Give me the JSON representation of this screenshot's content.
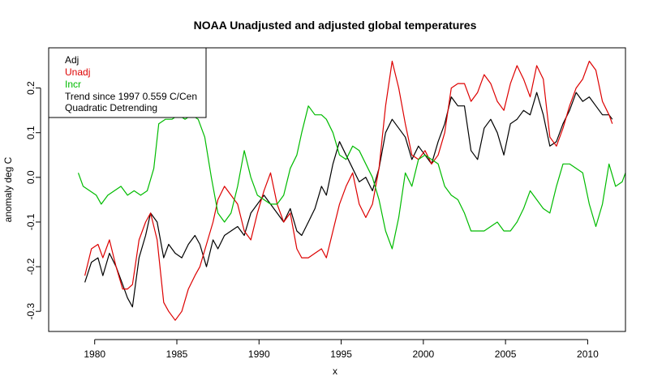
{
  "chart_data": {
    "type": "line",
    "title": "NOAA Unadjusted and adjusted global temperatures",
    "xlabel": "x",
    "ylabel": "anomaly deg C",
    "xlim": [
      1977.2,
      2012.3
    ],
    "ylim": [
      -0.345,
      0.29
    ],
    "x_ticks": [
      "1980",
      "1985",
      "1990",
      "1995",
      "2000",
      "2005",
      "2010"
    ],
    "y_ticks": [
      "-0.3",
      "-0.2",
      "-0.1",
      "0.0",
      "0.1",
      "0.2"
    ],
    "legend": {
      "position": "top-left",
      "entries": [
        {
          "text": "Adj",
          "color": "#000000"
        },
        {
          "text": "Unadj",
          "color": "#dd0000"
        },
        {
          "text": "Incr",
          "color": "#00bb00"
        },
        {
          "text": "Trend since 1997 0.559 C/Cen",
          "color": "#000000"
        },
        {
          "text": "Quadratic Detrending",
          "color": "#000000"
        }
      ]
    },
    "series": [
      {
        "name": "Adj",
        "color": "#000000",
        "points": [
          [
            1979.4,
            -0.235
          ],
          [
            1979.8,
            -0.19
          ],
          [
            1980.2,
            -0.18
          ],
          [
            1980.5,
            -0.22
          ],
          [
            1980.9,
            -0.17
          ],
          [
            1981.3,
            -0.2
          ],
          [
            1981.7,
            -0.24
          ],
          [
            1982.0,
            -0.27
          ],
          [
            1982.3,
            -0.29
          ],
          [
            1982.7,
            -0.18
          ],
          [
            1983.1,
            -0.13
          ],
          [
            1983.4,
            -0.08
          ],
          [
            1983.8,
            -0.1
          ],
          [
            1984.2,
            -0.18
          ],
          [
            1984.5,
            -0.15
          ],
          [
            1984.9,
            -0.17
          ],
          [
            1985.3,
            -0.18
          ],
          [
            1985.7,
            -0.15
          ],
          [
            1986.1,
            -0.13
          ],
          [
            1986.4,
            -0.15
          ],
          [
            1986.8,
            -0.2
          ],
          [
            1987.2,
            -0.14
          ],
          [
            1987.5,
            -0.16
          ],
          [
            1987.9,
            -0.13
          ],
          [
            1988.3,
            -0.12
          ],
          [
            1988.7,
            -0.11
          ],
          [
            1989.1,
            -0.13
          ],
          [
            1989.5,
            -0.08
          ],
          [
            1989.9,
            -0.06
          ],
          [
            1990.3,
            -0.04
          ],
          [
            1990.7,
            -0.06
          ],
          [
            1991.1,
            -0.08
          ],
          [
            1991.5,
            -0.1
          ],
          [
            1991.9,
            -0.07
          ],
          [
            1992.3,
            -0.12
          ],
          [
            1992.6,
            -0.13
          ],
          [
            1993.0,
            -0.1
          ],
          [
            1993.4,
            -0.07
          ],
          [
            1993.8,
            -0.02
          ],
          [
            1994.1,
            -0.04
          ],
          [
            1994.5,
            0.03
          ],
          [
            1994.9,
            0.08
          ],
          [
            1995.3,
            0.05
          ],
          [
            1995.7,
            0.02
          ],
          [
            1996.1,
            -0.01
          ],
          [
            1996.5,
            0.0
          ],
          [
            1996.9,
            -0.03
          ],
          [
            1997.3,
            0.02
          ],
          [
            1997.7,
            0.1
          ],
          [
            1998.1,
            0.13
          ],
          [
            1998.5,
            0.11
          ],
          [
            1998.9,
            0.09
          ],
          [
            1999.3,
            0.04
          ],
          [
            1999.7,
            0.07
          ],
          [
            2000.1,
            0.05
          ],
          [
            2000.5,
            0.03
          ],
          [
            2000.9,
            0.08
          ],
          [
            2001.3,
            0.12
          ],
          [
            2001.7,
            0.18
          ],
          [
            2002.1,
            0.16
          ],
          [
            2002.5,
            0.16
          ],
          [
            2002.9,
            0.06
          ],
          [
            2003.3,
            0.04
          ],
          [
            2003.7,
            0.11
          ],
          [
            2004.1,
            0.13
          ],
          [
            2004.5,
            0.1
          ],
          [
            2004.9,
            0.05
          ],
          [
            2005.3,
            0.12
          ],
          [
            2005.7,
            0.13
          ],
          [
            2006.1,
            0.15
          ],
          [
            2006.5,
            0.14
          ],
          [
            2006.9,
            0.19
          ],
          [
            2007.3,
            0.14
          ],
          [
            2007.7,
            0.07
          ],
          [
            2008.1,
            0.08
          ],
          [
            2008.5,
            0.12
          ],
          [
            2008.9,
            0.15
          ],
          [
            2009.3,
            0.19
          ],
          [
            2009.7,
            0.17
          ],
          [
            2010.1,
            0.18
          ],
          [
            2010.5,
            0.16
          ],
          [
            2010.9,
            0.14
          ],
          [
            2011.3,
            0.14
          ],
          [
            2011.5,
            0.13
          ]
        ]
      },
      {
        "name": "Unadj",
        "color": "#dd0000",
        "points": [
          [
            1979.4,
            -0.22
          ],
          [
            1979.8,
            -0.16
          ],
          [
            1980.2,
            -0.15
          ],
          [
            1980.5,
            -0.18
          ],
          [
            1980.9,
            -0.14
          ],
          [
            1981.3,
            -0.2
          ],
          [
            1981.7,
            -0.25
          ],
          [
            1982.0,
            -0.25
          ],
          [
            1982.3,
            -0.24
          ],
          [
            1982.7,
            -0.14
          ],
          [
            1983.1,
            -0.1
          ],
          [
            1983.4,
            -0.08
          ],
          [
            1983.8,
            -0.14
          ],
          [
            1984.2,
            -0.28
          ],
          [
            1984.5,
            -0.3
          ],
          [
            1984.9,
            -0.32
          ],
          [
            1985.3,
            -0.3
          ],
          [
            1985.7,
            -0.25
          ],
          [
            1986.1,
            -0.22
          ],
          [
            1986.4,
            -0.2
          ],
          [
            1986.8,
            -0.15
          ],
          [
            1987.2,
            -0.1
          ],
          [
            1987.5,
            -0.05
          ],
          [
            1987.9,
            -0.02
          ],
          [
            1988.3,
            -0.04
          ],
          [
            1988.7,
            -0.06
          ],
          [
            1989.1,
            -0.12
          ],
          [
            1989.5,
            -0.14
          ],
          [
            1989.9,
            -0.08
          ],
          [
            1990.3,
            -0.03
          ],
          [
            1990.7,
            0.01
          ],
          [
            1991.1,
            -0.06
          ],
          [
            1991.5,
            -0.1
          ],
          [
            1991.9,
            -0.08
          ],
          [
            1992.3,
            -0.16
          ],
          [
            1992.6,
            -0.18
          ],
          [
            1993.0,
            -0.18
          ],
          [
            1993.4,
            -0.17
          ],
          [
            1993.8,
            -0.16
          ],
          [
            1994.1,
            -0.18
          ],
          [
            1994.5,
            -0.12
          ],
          [
            1994.9,
            -0.06
          ],
          [
            1995.3,
            -0.02
          ],
          [
            1995.7,
            0.01
          ],
          [
            1996.1,
            -0.06
          ],
          [
            1996.5,
            -0.09
          ],
          [
            1996.9,
            -0.06
          ],
          [
            1997.3,
            0.02
          ],
          [
            1997.7,
            0.16
          ],
          [
            1998.1,
            0.26
          ],
          [
            1998.5,
            0.2
          ],
          [
            1998.9,
            0.12
          ],
          [
            1999.3,
            0.05
          ],
          [
            1999.7,
            0.04
          ],
          [
            2000.1,
            0.06
          ],
          [
            2000.5,
            0.03
          ],
          [
            2000.9,
            0.05
          ],
          [
            2001.3,
            0.1
          ],
          [
            2001.7,
            0.2
          ],
          [
            2002.1,
            0.21
          ],
          [
            2002.5,
            0.21
          ],
          [
            2002.9,
            0.17
          ],
          [
            2003.3,
            0.19
          ],
          [
            2003.7,
            0.23
          ],
          [
            2004.1,
            0.21
          ],
          [
            2004.5,
            0.17
          ],
          [
            2004.9,
            0.15
          ],
          [
            2005.3,
            0.21
          ],
          [
            2005.7,
            0.25
          ],
          [
            2006.1,
            0.22
          ],
          [
            2006.5,
            0.18
          ],
          [
            2006.9,
            0.25
          ],
          [
            2007.3,
            0.22
          ],
          [
            2007.7,
            0.09
          ],
          [
            2008.1,
            0.07
          ],
          [
            2008.5,
            0.11
          ],
          [
            2008.9,
            0.16
          ],
          [
            2009.3,
            0.2
          ],
          [
            2009.7,
            0.22
          ],
          [
            2010.1,
            0.26
          ],
          [
            2010.5,
            0.24
          ],
          [
            2010.9,
            0.17
          ],
          [
            2011.3,
            0.14
          ],
          [
            2011.5,
            0.12
          ]
        ]
      },
      {
        "name": "Incr",
        "color": "#00bb00",
        "points": [
          [
            1979.0,
            0.01
          ],
          [
            1979.3,
            -0.02
          ],
          [
            1979.7,
            -0.03
          ],
          [
            1980.1,
            -0.04
          ],
          [
            1980.4,
            -0.06
          ],
          [
            1980.8,
            -0.04
          ],
          [
            1981.2,
            -0.03
          ],
          [
            1981.6,
            -0.02
          ],
          [
            1982.0,
            -0.04
          ],
          [
            1982.4,
            -0.03
          ],
          [
            1982.8,
            -0.04
          ],
          [
            1983.2,
            -0.03
          ],
          [
            1983.6,
            0.02
          ],
          [
            1983.9,
            0.12
          ],
          [
            1984.3,
            0.13
          ],
          [
            1984.7,
            0.13
          ],
          [
            1985.1,
            0.14
          ],
          [
            1985.5,
            0.13
          ],
          [
            1985.9,
            0.14
          ],
          [
            1986.3,
            0.13
          ],
          [
            1986.7,
            0.09
          ],
          [
            1987.1,
            0.0
          ],
          [
            1987.5,
            -0.08
          ],
          [
            1987.9,
            -0.1
          ],
          [
            1988.3,
            -0.08
          ],
          [
            1988.7,
            -0.02
          ],
          [
            1989.1,
            0.06
          ],
          [
            1989.5,
            0.0
          ],
          [
            1989.9,
            -0.04
          ],
          [
            1990.3,
            -0.05
          ],
          [
            1990.7,
            -0.06
          ],
          [
            1991.1,
            -0.06
          ],
          [
            1991.5,
            -0.04
          ],
          [
            1991.9,
            0.02
          ],
          [
            1992.3,
            0.05
          ],
          [
            1992.6,
            0.1
          ],
          [
            1993.0,
            0.16
          ],
          [
            1993.4,
            0.14
          ],
          [
            1993.8,
            0.14
          ],
          [
            1994.1,
            0.13
          ],
          [
            1994.5,
            0.1
          ],
          [
            1994.9,
            0.05
          ],
          [
            1995.3,
            0.04
          ],
          [
            1995.7,
            0.07
          ],
          [
            1996.1,
            0.06
          ],
          [
            1996.5,
            0.03
          ],
          [
            1996.9,
            0.0
          ],
          [
            1997.3,
            -0.05
          ],
          [
            1997.7,
            -0.12
          ],
          [
            1998.1,
            -0.16
          ],
          [
            1998.5,
            -0.09
          ],
          [
            1998.9,
            0.01
          ],
          [
            1999.3,
            -0.02
          ],
          [
            1999.7,
            0.04
          ],
          [
            2000.1,
            0.05
          ],
          [
            2000.5,
            0.04
          ],
          [
            2000.9,
            0.03
          ],
          [
            2001.3,
            -0.02
          ],
          [
            2001.7,
            -0.04
          ],
          [
            2002.1,
            -0.05
          ],
          [
            2002.5,
            -0.08
          ],
          [
            2002.9,
            -0.12
          ],
          [
            2003.3,
            -0.12
          ],
          [
            2003.7,
            -0.12
          ],
          [
            2004.1,
            -0.11
          ],
          [
            2004.5,
            -0.1
          ],
          [
            2004.9,
            -0.12
          ],
          [
            2005.3,
            -0.12
          ],
          [
            2005.7,
            -0.1
          ],
          [
            2006.1,
            -0.07
          ],
          [
            2006.5,
            -0.03
          ],
          [
            2006.9,
            -0.05
          ],
          [
            2007.3,
            -0.07
          ],
          [
            2007.7,
            -0.08
          ],
          [
            2008.1,
            -0.02
          ],
          [
            2008.5,
            0.03
          ],
          [
            2008.9,
            0.03
          ],
          [
            2009.3,
            0.02
          ],
          [
            2009.7,
            0.01
          ],
          [
            2010.1,
            -0.06
          ],
          [
            2010.5,
            -0.11
          ],
          [
            2010.9,
            -0.06
          ],
          [
            2011.3,
            0.03
          ],
          [
            2011.7,
            -0.02
          ],
          [
            2012.1,
            -0.01
          ],
          [
            2012.3,
            0.01
          ]
        ]
      }
    ]
  }
}
